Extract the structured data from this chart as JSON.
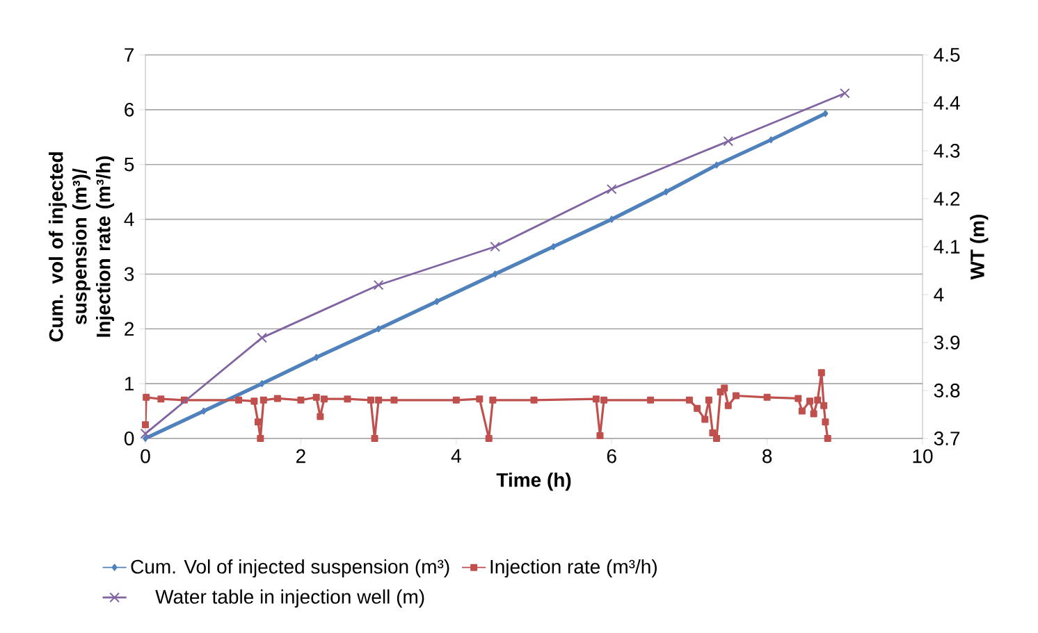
{
  "chart_data": {
    "type": "line",
    "xlabel": "Time (h)",
    "ylabel": "Cum. vol of injected suspension (m³)/ Injection rate (m³/h)",
    "y2label": "WT (m)",
    "xlim": [
      0,
      10
    ],
    "xticks": [
      0,
      2,
      4,
      6,
      8,
      10
    ],
    "ylim": [
      0,
      7
    ],
    "yticks": [
      0,
      1,
      2,
      3,
      4,
      5,
      6,
      7
    ],
    "y2lim": [
      3.7,
      4.5
    ],
    "y2ticks": [
      3.7,
      3.8,
      3.9,
      4,
      4.1,
      4.2,
      4.3,
      4.4,
      4.5
    ],
    "grid": "y",
    "legend": "bottom",
    "line_style": "solid",
    "series": [
      {
        "name": "Cum. Vol of injected suspension (m³)",
        "color": "#4f81bd",
        "marker": "diamond",
        "x": [
          0,
          0.75,
          1.5,
          2.2,
          3,
          3.75,
          4.5,
          5.25,
          6,
          6.7,
          7.35,
          8.05,
          8.75
        ],
        "values": [
          0,
          0.5,
          1,
          1.48,
          2,
          2.5,
          3,
          3.5,
          4,
          4.5,
          4.99,
          5.45,
          5.93
        ]
      },
      {
        "name": "Injection rate (m³/h)",
        "color": "#c0504d",
        "marker": "square",
        "x": [
          0,
          0.01,
          0.2,
          0.5,
          1.2,
          1.4,
          1.45,
          1.48,
          1.52,
          1.7,
          2.0,
          2.2,
          2.25,
          2.3,
          2.6,
          2.9,
          2.95,
          3.0,
          3.2,
          4.0,
          4.3,
          4.42,
          4.47,
          5.0,
          5.8,
          5.85,
          5.9,
          6.5,
          7.0,
          7.1,
          7.2,
          7.25,
          7.3,
          7.35,
          7.4,
          7.45,
          7.5,
          7.6,
          8.0,
          8.4,
          8.45,
          8.55,
          8.6,
          8.65,
          8.7,
          8.73,
          8.75,
          8.78
        ],
        "values": [
          0.25,
          0.75,
          0.72,
          0.7,
          0.7,
          0.68,
          0.3,
          0,
          0.7,
          0.73,
          0.7,
          0.75,
          0.4,
          0.72,
          0.72,
          0.7,
          0,
          0.7,
          0.7,
          0.7,
          0.72,
          0,
          0.7,
          0.7,
          0.72,
          0.05,
          0.7,
          0.7,
          0.7,
          0.55,
          0.35,
          0.7,
          0.1,
          0,
          0.85,
          0.92,
          0.6,
          0.78,
          0.75,
          0.73,
          0.5,
          0.68,
          0.45,
          0.7,
          1.2,
          0.6,
          0.3,
          0
        ]
      },
      {
        "name": "Water table in injection well (m)",
        "color": "#8064a2",
        "marker": "cross",
        "axis": "y2",
        "x": [
          0,
          1.5,
          3,
          4.5,
          6,
          7.5,
          9
        ],
        "values": [
          3.71,
          3.91,
          4.02,
          4.1,
          4.22,
          4.32,
          4.42
        ]
      }
    ]
  }
}
